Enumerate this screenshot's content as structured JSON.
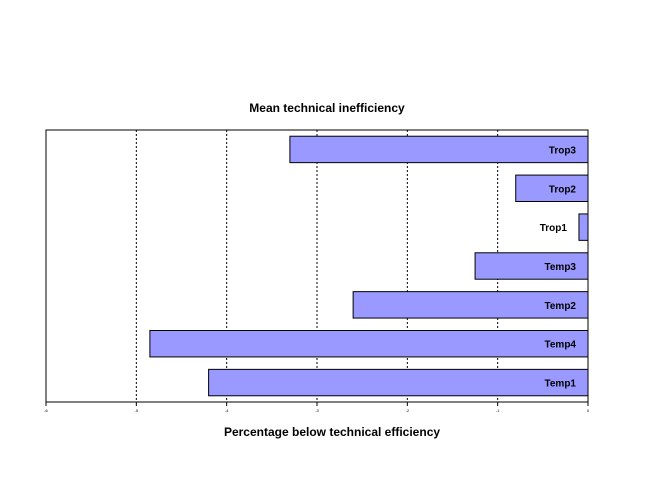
{
  "chart_data": {
    "type": "bar",
    "orientation": "horizontal",
    "title": "Mean technical inefficiency",
    "xlabel": "Percentage below technical efficiency",
    "ylabel": "",
    "xlim": [
      -6,
      0
    ],
    "x_ticks": [
      -6,
      -5,
      -4,
      -3,
      -2,
      -1,
      0
    ],
    "x_tick_labels": [
      "-6",
      "-5",
      "-4",
      "-3",
      "-2",
      "-1",
      "0"
    ],
    "grid": "vertical dashed",
    "legend": "none",
    "bar_color": "#9999ff",
    "categories": [
      "Trop3",
      "Trop2",
      "Trop1",
      "Temp3",
      "Temp2",
      "Temp4",
      "Temp1"
    ],
    "values": [
      -3.3,
      -0.8,
      -0.1,
      -1.25,
      -2.6,
      -4.85,
      -4.2
    ]
  }
}
